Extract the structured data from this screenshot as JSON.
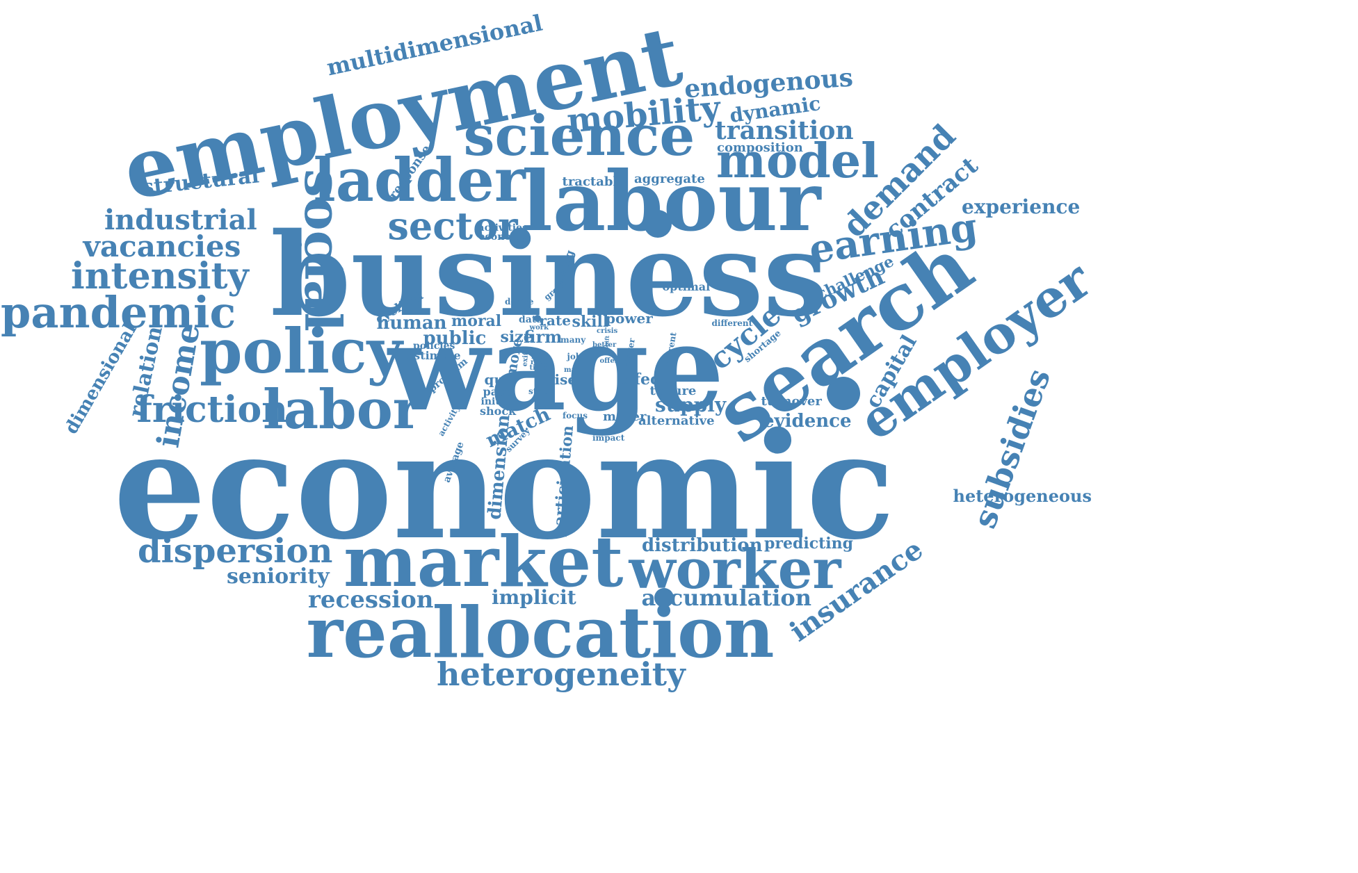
{
  "style": {
    "color": "#4682b4",
    "background": "#ffffff"
  },
  "words": [
    {
      "id": "economic",
      "text": "economic",
      "weight": 1.0
    },
    {
      "id": "business",
      "text": "business",
      "weight": 0.78
    },
    {
      "id": "wage",
      "text": "wage",
      "weight": 0.7
    },
    {
      "id": "employment",
      "text": "employment",
      "weight": 0.62
    },
    {
      "id": "labour",
      "text": "labour",
      "weight": 0.58
    },
    {
      "id": "search",
      "text": "search",
      "weight": 0.56
    },
    {
      "id": "market",
      "text": "market",
      "weight": 0.5
    },
    {
      "id": "reallocation",
      "text": "reallocation",
      "weight": 0.48
    },
    {
      "id": "science",
      "text": "science",
      "weight": 0.4
    },
    {
      "id": "worker",
      "text": "worker",
      "weight": 0.38
    },
    {
      "id": "employer",
      "text": "employer",
      "weight": 0.37
    },
    {
      "id": "policy",
      "text": "policy",
      "weight": 0.35
    },
    {
      "id": "ladder",
      "text": "ladder",
      "weight": 0.33
    },
    {
      "id": "model",
      "text": "model",
      "weight": 0.33
    },
    {
      "id": "social",
      "text": "social",
      "weight": 0.3
    },
    {
      "id": "labor",
      "text": "labor",
      "weight": 0.3
    },
    {
      "id": "sector",
      "text": "sector",
      "weight": 0.24
    },
    {
      "id": "earning",
      "text": "earning",
      "weight": 0.24
    },
    {
      "id": "pandemic",
      "text": "pandemic",
      "weight": 0.24
    },
    {
      "id": "mobility",
      "text": "mobility",
      "weight": 0.23
    },
    {
      "id": "heterogeneity",
      "text": "heterogeneity",
      "weight": 0.22
    },
    {
      "id": "friction",
      "text": "friction",
      "weight": 0.22
    },
    {
      "id": "dispersion",
      "text": "dispersion",
      "weight": 0.22
    },
    {
      "id": "intensity",
      "text": "intensity",
      "weight": 0.2
    },
    {
      "id": "demand",
      "text": "demand",
      "weight": 0.2
    },
    {
      "id": "subsidies",
      "text": "subsidies",
      "weight": 0.19
    },
    {
      "id": "income",
      "text": "income",
      "weight": 0.18
    },
    {
      "id": "cycle",
      "text": "cycle",
      "weight": 0.18
    },
    {
      "id": "vacancies",
      "text": "vacancies",
      "weight": 0.17
    },
    {
      "id": "industrial",
      "text": "industrial",
      "weight": 0.17
    },
    {
      "id": "insurance",
      "text": "insurance",
      "weight": 0.17
    },
    {
      "id": "endogenous",
      "text": "endogenous",
      "weight": 0.16
    },
    {
      "id": "transition",
      "text": "transition",
      "weight": 0.16
    },
    {
      "id": "growth",
      "text": "growth",
      "weight": 0.16
    },
    {
      "id": "recession",
      "text": "recession",
      "weight": 0.15
    },
    {
      "id": "multidimensional",
      "text": "multidimensional",
      "weight": 0.15
    },
    {
      "id": "contract",
      "text": "contract",
      "weight": 0.15
    },
    {
      "id": "seniority",
      "text": "seniority",
      "weight": 0.14
    },
    {
      "id": "relation",
      "text": "relation",
      "weight": 0.14
    },
    {
      "id": "accumulation",
      "text": "accumulation",
      "weight": 0.14
    },
    {
      "id": "structural",
      "text": "structural",
      "weight": 0.13
    },
    {
      "id": "dynamic",
      "text": "dynamic",
      "weight": 0.13
    },
    {
      "id": "experience",
      "text": "experience",
      "weight": 0.13
    },
    {
      "id": "capital",
      "text": "capital",
      "weight": 0.13
    },
    {
      "id": "implicit",
      "text": "implicit",
      "weight": 0.13
    },
    {
      "id": "distribution",
      "text": "distribution",
      "weight": 0.12
    },
    {
      "id": "evidence",
      "text": "evidence",
      "weight": 0.12
    },
    {
      "id": "match",
      "text": "match",
      "weight": 0.12
    },
    {
      "id": "supply",
      "text": "supply",
      "weight": 0.12
    },
    {
      "id": "public",
      "text": "public",
      "weight": 0.12
    },
    {
      "id": "human",
      "text": "human",
      "weight": 0.12
    },
    {
      "id": "dimensional",
      "text": "dimensional",
      "weight": 0.11
    },
    {
      "id": "heterogeneous",
      "text": "heterogeneous",
      "weight": 0.11
    },
    {
      "id": "dimension",
      "text": "dimension",
      "weight": 0.11
    },
    {
      "id": "challenge",
      "text": "challenge",
      "weight": 0.11
    },
    {
      "id": "predicting",
      "text": "predicting",
      "weight": 0.11
    },
    {
      "id": "participation",
      "text": "participation",
      "weight": 0.1
    },
    {
      "id": "moral",
      "text": "moral",
      "weight": 0.1
    },
    {
      "id": "size",
      "text": "size",
      "weight": 0.1
    },
    {
      "id": "firm",
      "text": "firm",
      "weight": 0.1
    },
    {
      "id": "skill",
      "text": "skill",
      "weight": 0.1
    },
    {
      "id": "effect",
      "text": "effect",
      "weight": 0.1
    },
    {
      "id": "rate",
      "text": "rate",
      "weight": 0.1
    },
    {
      "id": "power",
      "text": "power",
      "weight": 0.1
    },
    {
      "id": "quit",
      "text": "quit",
      "weight": 0.1
    },
    {
      "id": "rise",
      "text": "rise",
      "weight": 0.1
    },
    {
      "id": "mover",
      "text": "mover",
      "weight": 0.1
    },
    {
      "id": "tenure",
      "text": "tenure",
      "weight": 0.1
    },
    {
      "id": "alternative",
      "text": "alternative",
      "weight": 0.09
    },
    {
      "id": "cyclical",
      "text": "cyclical",
      "weight": 0.09
    },
    {
      "id": "more",
      "text": "more",
      "weight": 0.09
    },
    {
      "id": "composition",
      "text": "composition",
      "weight": 0.08
    },
    {
      "id": "tractable",
      "text": "tractable",
      "weight": 0.08
    },
    {
      "id": "aggregate",
      "text": "aggregate",
      "weight": 0.08
    },
    {
      "id": "turnover",
      "text": "turnover",
      "weight": 0.08
    },
    {
      "id": "response",
      "text": "response",
      "weight": 0.08
    },
    {
      "id": "optimal",
      "text": "optimal",
      "weight": 0.08
    },
    {
      "id": "pace",
      "text": "pace",
      "weight": 0.08
    },
    {
      "id": "initial",
      "text": "initial",
      "weight": 0.08
    },
    {
      "id": "shock",
      "text": "shock",
      "weight": 0.08
    },
    {
      "id": "posting",
      "text": "posting",
      "weight": 0.08
    },
    {
      "id": "estimate",
      "text": "estimate",
      "weight": 0.08
    },
    {
      "id": "policies",
      "text": "policies",
      "weight": 0.07
    },
    {
      "id": "program",
      "text": "program",
      "weight": 0.07
    },
    {
      "id": "shortage",
      "text": "shortage",
      "weight": 0.07
    },
    {
      "id": "data",
      "text": "data",
      "weight": 0.07
    },
    {
      "id": "average",
      "text": "average",
      "weight": 0.07
    },
    {
      "id": "current",
      "text": "current",
      "weight": 0.07
    },
    {
      "id": "activities",
      "text": "activities",
      "weight": 0.06
    },
    {
      "id": "economy",
      "text": "economy",
      "weight": 0.06
    },
    {
      "id": "derive",
      "text": "derive",
      "weight": 0.06
    },
    {
      "id": "great",
      "text": "great",
      "weight": 0.06
    },
    {
      "id": "different",
      "text": "different",
      "weight": 0.06
    },
    {
      "id": "focus",
      "text": "focus",
      "weight": 0.06
    },
    {
      "id": "impact",
      "text": "impact",
      "weight": 0.06
    },
    {
      "id": "job",
      "text": "job",
      "weight": 0.06
    },
    {
      "id": "study",
      "text": "study",
      "weight": 0.06
    },
    {
      "id": "survey",
      "text": "survey",
      "weight": 0.06
    },
    {
      "id": "activity",
      "text": "activity",
      "weight": 0.06
    },
    {
      "id": "stayer",
      "text": "stayer",
      "weight": 0.06
    },
    {
      "id": "main",
      "text": "main",
      "weight": 0.05
    },
    {
      "id": "many",
      "text": "many",
      "weight": 0.05
    },
    {
      "id": "work",
      "text": "work",
      "weight": 0.05
    },
    {
      "id": "crisis",
      "text": "crisis",
      "weight": 0.05
    },
    {
      "id": "offer",
      "text": "offer",
      "weight": 0.05
    },
    {
      "id": "value",
      "text": "value",
      "weight": 0.05
    },
    {
      "id": "fall",
      "text": "fall",
      "weight": 0.05
    },
    {
      "id": "rent",
      "text": "rent",
      "weight": 0.05
    },
    {
      "id": "time",
      "text": "time",
      "weight": 0.05
    },
    {
      "id": "exit",
      "text": "exit",
      "weight": 0.05
    },
    {
      "id": "better",
      "text": "better",
      "weight": 0.05
    },
    {
      "id": "shift",
      "text": "shift",
      "weight": 0.05
    }
  ]
}
